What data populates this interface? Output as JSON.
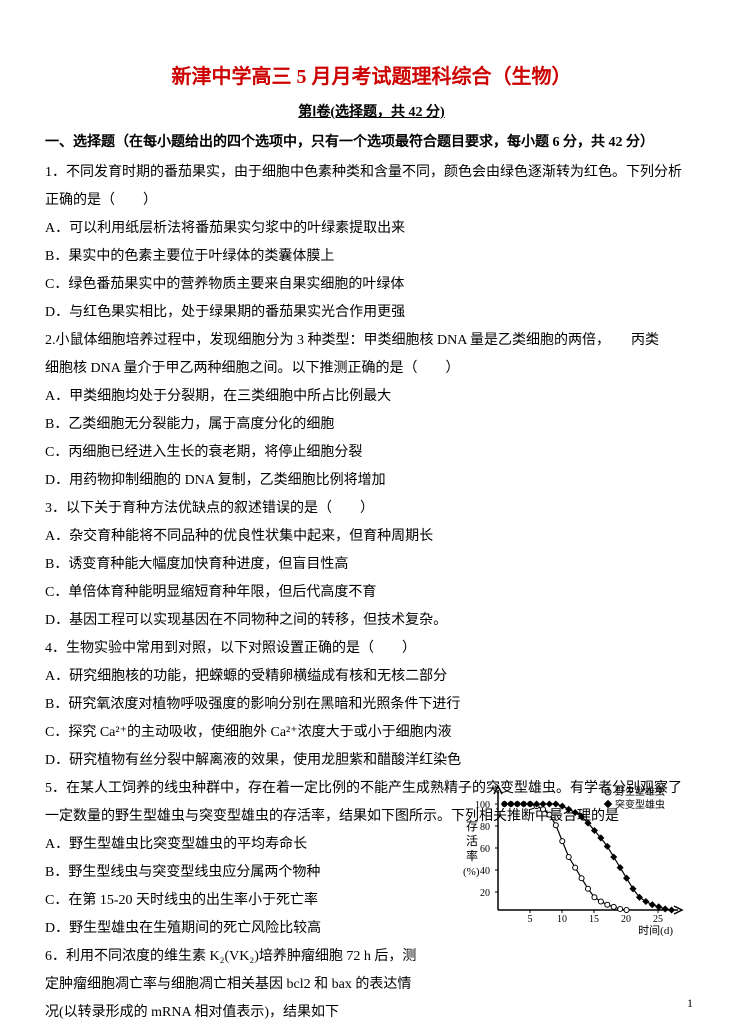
{
  "title": {
    "text": "新津中学高三 5 月月考试题理科综合（生物）",
    "color": "#cc0000",
    "fontsize": 20
  },
  "subtitle": "第Ⅰ卷(选择题，共 42 分)",
  "section_header": "一、选择题（在每小题给出的四个选项中，只有一个选项最符合题目要求，每小题 6 分，共 42 分）",
  "questions": [
    "1．不同发育时期的番茄果实，由于细胞中色素种类和含量不同，颜色会由绿色逐渐转为红色。下列分析",
    "正确的是（　　）",
    "A．可以利用纸层析法将番茄果实匀浆中的叶绿素提取出来",
    "B．果实中的色素主要位于叶绿体的类囊体膜上",
    "C．绿色番茄果实中的营养物质主要来自果实细胞的叶绿体",
    "D．与红色果实相比，处于绿果期的番茄果实光合作用更强",
    "2.小鼠体细胞培养过程中，发现细胞分为 3 种类型：甲类细胞核 DNA 量是乙类细胞的两倍，　　丙类",
    "细胞核 DNA 量介于甲乙两种细胞之间。以下推测正确的是（　　）",
    "A．甲类细胞均处于分裂期，在三类细胞中所占比例最大",
    "B．乙类细胞无分裂能力，属于高度分化的细胞",
    "C．丙细胞已经进入生长的衰老期，将停止细胞分裂",
    "D．用药物抑制细胞的 DNA 复制，乙类细胞比例将增加",
    "3．以下关于育种方法优缺点的叙述错误的是（　　）",
    "A．杂交育种能将不同品种的优良性状集中起来，但育种周期长",
    "B．诱变育种能大幅度加快育种进度，但盲目性高",
    "C．单倍体育种能明显缩短育种年限，但后代高度不育",
    "D．基因工程可以实现基因在不同物种之间的转移，但技术复杂。",
    "4．生物实验中常用到对照，以下对照设置正确的是（　　）",
    "A．研究细胞核的功能，把蝾螈的受精卵横缢成有核和无核二部分",
    "B．研究氧浓度对植物呼吸强度的影响分别在黑暗和光照条件下进行",
    "C．探究 Ca²⁺的主动吸收，使细胞外 Ca²⁺浓度大于或小于细胞内液",
    "D．研究植物有丝分裂中解离液的效果，使用龙胆紫和醋酸洋红染色",
    "5．在某人工饲养的线虫种群中，存在着一定比例的不能产生成熟精子的突变型雄虫。有学者分别观察了",
    "一定数量的野生型雄虫与突变型雄虫的存活率，结果如下图所示。下列相关推断中最合理的是",
    "A．野生型雄虫比突变型雄虫的平均寿命长",
    "B．野生型线虫与突变型线虫应分属两个物种",
    "C．在第 15-20 天时线虫的出生率小于死亡率",
    "D．野生型雄虫在生殖期间的死亡风险比较高",
    "6．利用不同浓度的维生素 K₂(VK₂)培养肿瘤细胞 72 h 后，测",
    "定肿瘤细胞凋亡率与细胞凋亡相关基因 bcl2 和 bax 的表达情",
    "况(以转录形成的 mRNA 相对值表示)，结果如下"
  ],
  "chart": {
    "type": "line",
    "xlabel": "时间(d)",
    "ylabel": "存活率(%)",
    "xlim": [
      0,
      28
    ],
    "ylim": [
      0,
      100
    ],
    "xticks": [
      5,
      10,
      15,
      20,
      25
    ],
    "yticks": [
      20,
      40,
      60,
      80,
      100
    ],
    "ytick_step": 20,
    "legend": [
      "野生型雄虫",
      "突变型雄虫"
    ],
    "legend_position": "top-right",
    "series": [
      {
        "name": "野生型雄虫",
        "marker": "circle-open",
        "color": "#000000",
        "x": [
          1,
          2,
          3,
          4,
          5,
          6,
          7,
          8,
          9,
          10,
          11,
          12,
          13,
          14,
          15,
          16,
          17,
          18,
          19,
          20
        ],
        "y": [
          100,
          100,
          100,
          100,
          100,
          98,
          95,
          90,
          80,
          65,
          50,
          40,
          30,
          20,
          12,
          8,
          5,
          3,
          1,
          0
        ]
      },
      {
        "name": "突变型雄虫",
        "marker": "diamond-filled",
        "color": "#000000",
        "x": [
          1,
          2,
          3,
          4,
          5,
          6,
          7,
          8,
          9,
          10,
          11,
          12,
          13,
          14,
          15,
          16,
          17,
          18,
          19,
          20,
          21,
          22,
          23,
          24,
          25,
          26,
          27
        ],
        "y": [
          100,
          100,
          100,
          100,
          100,
          100,
          100,
          100,
          100,
          98,
          95,
          92,
          88,
          82,
          75,
          68,
          60,
          50,
          40,
          30,
          20,
          12,
          8,
          5,
          3,
          1,
          0
        ]
      }
    ],
    "background_color": "#ffffff",
    "axis_color": "#000000",
    "label_fontsize": 12
  },
  "page_number": "1"
}
